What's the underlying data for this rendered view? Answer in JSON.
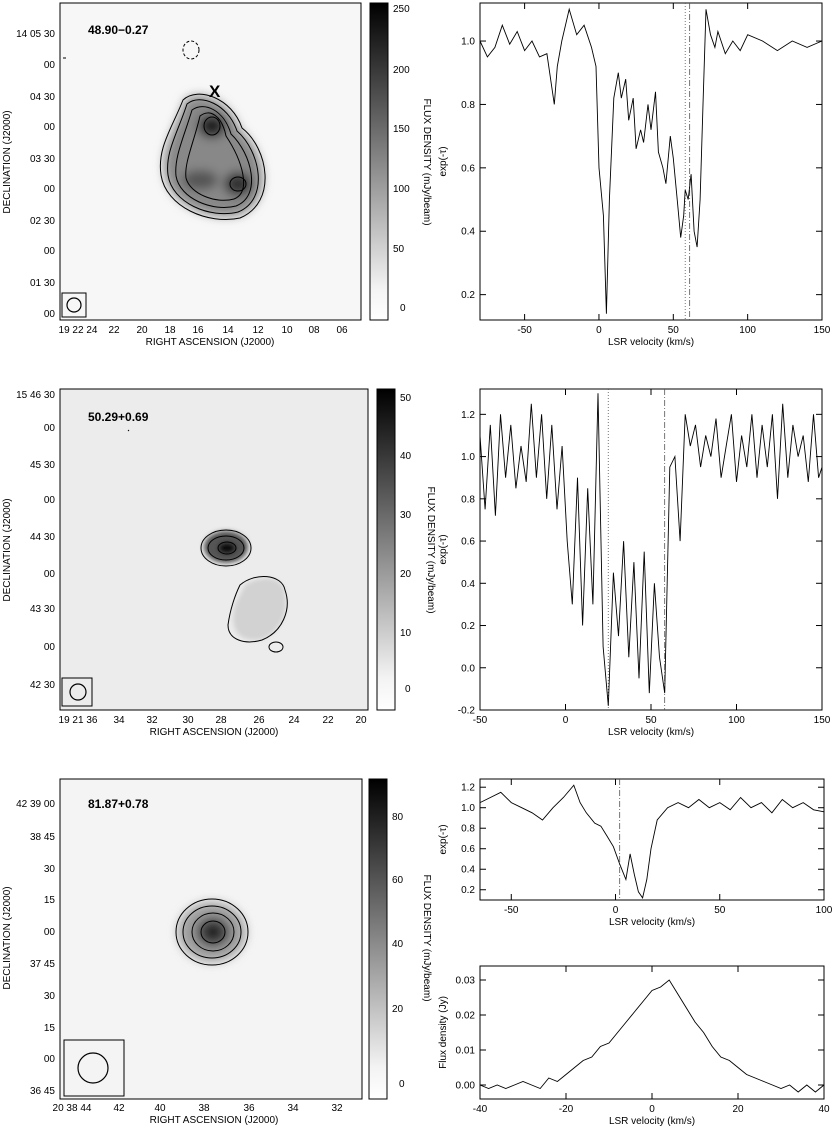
{
  "maps": [
    {
      "id": "map1",
      "source": "48.90−0.27",
      "marker": "X",
      "xlabel": "RIGHT ASCENSION (J2000)",
      "ylabel": "DECLINATION (J2000)",
      "colorbar_label": "FLUX DENSITY (mJy/beam)",
      "x_ticks": [
        "19 22 24",
        "22",
        "20",
        "18",
        "16",
        "14",
        "12",
        "10",
        "08",
        "06"
      ],
      "y_ticks": [
        "14 05 30",
        "00",
        "04 30",
        "00",
        "03 30",
        "00",
        "02 30",
        "00",
        "01 30",
        "00"
      ],
      "colorbar_ticks": [
        "250",
        "200",
        "150",
        "100",
        "50",
        "0"
      ]
    },
    {
      "id": "map2",
      "source": "50.29+0.69",
      "xlabel": "RIGHT ASCENSION (J2000)",
      "ylabel": "DECLINATION (J2000)",
      "colorbar_label": "FLUX DENSITY (mJy/beam)",
      "x_ticks": [
        "19 21 36",
        "34",
        "32",
        "30",
        "28",
        "26",
        "24",
        "22",
        "20"
      ],
      "y_ticks": [
        "15 46 30",
        "00",
        "45 30",
        "00",
        "44 30",
        "00",
        "43 30",
        "00",
        "42 30"
      ],
      "colorbar_ticks": [
        "50",
        "40",
        "30",
        "20",
        "10",
        "0"
      ]
    },
    {
      "id": "map3",
      "source": "81.87+0.78",
      "xlabel": "RIGHT ASCENSION (J2000)",
      "ylabel": "DECLINATION (J2000)",
      "colorbar_label": "FLUX DENSITY (mJy/beam)",
      "x_ticks": [
        "20 38 44",
        "42",
        "40",
        "38",
        "36",
        "34",
        "32"
      ],
      "y_ticks": [
        "42 39 00",
        "38 45",
        "30",
        "15",
        "00",
        "37 45",
        "30",
        "15",
        "00",
        "36 45"
      ],
      "colorbar_ticks": [
        "80",
        "60",
        "40",
        "20",
        "0"
      ]
    }
  ],
  "chart_data": [
    {
      "type": "line",
      "id": "spec1",
      "xlabel": "LSR velocity (km/s)",
      "ylabel": "exp(-τ)",
      "xlim": [
        -80,
        150
      ],
      "ylim": [
        0.12,
        1.12
      ],
      "x_ticks": [
        -50,
        0,
        50,
        100,
        150
      ],
      "y_ticks": [
        0.2,
        0.4,
        0.6,
        0.8,
        1.0
      ],
      "y_tick_labels": [
        "0.2",
        "0.4",
        "0.6",
        "0.8",
        "1.0"
      ],
      "vlines": [
        {
          "x": 58,
          "style": "dotted"
        },
        {
          "x": 61,
          "style": "dashdot"
        }
      ],
      "x": [
        -80,
        -75,
        -70,
        -65,
        -60,
        -55,
        -50,
        -45,
        -40,
        -35,
        -30,
        -28,
        -25,
        -20,
        -15,
        -10,
        -5,
        -2,
        0,
        3,
        5,
        7,
        10,
        13,
        15,
        18,
        20,
        23,
        25,
        28,
        30,
        33,
        35,
        38,
        40,
        43,
        45,
        48,
        50,
        53,
        55,
        57,
        58,
        60,
        62,
        64,
        66,
        68,
        70,
        72,
        75,
        78,
        80,
        85,
        90,
        95,
        100,
        110,
        120,
        130,
        140,
        150
      ],
      "y": [
        1.0,
        0.95,
        0.98,
        1.05,
        0.99,
        1.03,
        0.97,
        1.0,
        0.95,
        0.96,
        0.8,
        0.92,
        1.0,
        1.1,
        1.02,
        1.05,
        0.98,
        0.92,
        0.6,
        0.45,
        0.14,
        0.5,
        0.82,
        0.9,
        0.82,
        0.88,
        0.75,
        0.82,
        0.66,
        0.72,
        0.68,
        0.8,
        0.72,
        0.84,
        0.65,
        0.6,
        0.55,
        0.7,
        0.63,
        0.48,
        0.38,
        0.45,
        0.53,
        0.5,
        0.58,
        0.4,
        0.35,
        0.5,
        0.8,
        1.1,
        1.02,
        0.98,
        1.03,
        0.96,
        1.0,
        0.97,
        1.02,
        1.0,
        0.97,
        1.0,
        0.98,
        1.0
      ]
    },
    {
      "type": "line",
      "id": "spec2",
      "xlabel": "LSR velocity (km/s)",
      "ylabel": "exp(-τ)",
      "xlim": [
        -50,
        150
      ],
      "ylim": [
        -0.2,
        1.32
      ],
      "x_ticks": [
        -50,
        0,
        50,
        100,
        150
      ],
      "y_ticks": [
        -0.2,
        0.0,
        0.2,
        0.4,
        0.6,
        0.8,
        1.0,
        1.2
      ],
      "y_tick_labels": [
        "-0.2",
        "0.0",
        "0.2",
        "0.4",
        "0.6",
        "0.8",
        "1.0",
        "1.2"
      ],
      "vlines": [
        {
          "x": 25,
          "style": "dotted"
        },
        {
          "x": 58,
          "style": "dashdot"
        }
      ],
      "x": [
        -50,
        -47,
        -44,
        -41,
        -38,
        -35,
        -32,
        -29,
        -26,
        -23,
        -20,
        -17,
        -14,
        -11,
        -8,
        -5,
        -2,
        1,
        4,
        7,
        10,
        13,
        16,
        19,
        22,
        25,
        28,
        31,
        34,
        37,
        40,
        43,
        46,
        49,
        52,
        55,
        58,
        61,
        64,
        67,
        70,
        73,
        76,
        79,
        82,
        85,
        88,
        91,
        94,
        97,
        100,
        103,
        106,
        109,
        112,
        115,
        118,
        121,
        124,
        127,
        130,
        133,
        136,
        139,
        142,
        145,
        148,
        150
      ],
      "y": [
        1.1,
        0.75,
        1.15,
        0.72,
        1.2,
        0.9,
        1.15,
        0.85,
        1.05,
        0.88,
        1.25,
        0.9,
        1.2,
        0.8,
        1.15,
        0.75,
        1.05,
        0.6,
        0.3,
        0.9,
        0.2,
        0.85,
        0.3,
        1.3,
        0.1,
        -0.18,
        0.45,
        0.15,
        0.6,
        0.05,
        0.5,
        -0.05,
        0.55,
        -0.12,
        0.4,
        0.05,
        -0.12,
        0.95,
        1.0,
        0.6,
        1.2,
        1.05,
        1.15,
        0.95,
        1.1,
        1.0,
        1.18,
        0.9,
        1.05,
        1.2,
        0.88,
        1.1,
        0.95,
        1.2,
        0.9,
        1.15,
        0.95,
        1.2,
        0.8,
        1.25,
        0.9,
        1.15,
        1.0,
        1.1,
        0.88,
        1.2,
        0.9,
        0.95
      ]
    },
    {
      "type": "line",
      "id": "spec3",
      "xlabel": "LSR velocity (km/s)",
      "ylabel": "exp(-τ)",
      "xlim": [
        -65,
        100
      ],
      "ylim": [
        0.1,
        1.28
      ],
      "x_ticks": [
        -50,
        0,
        50,
        100
      ],
      "y_ticks": [
        0.2,
        0.4,
        0.6,
        0.8,
        1.0,
        1.2
      ],
      "y_tick_labels": [
        "0.2",
        "0.4",
        "0.6",
        "0.8",
        "1.0",
        "1.2"
      ],
      "vlines": [
        {
          "x": 2,
          "style": "dashdot"
        }
      ],
      "x": [
        -65,
        -60,
        -55,
        -50,
        -45,
        -40,
        -35,
        -30,
        -25,
        -20,
        -17,
        -14,
        -10,
        -7,
        -4,
        -1,
        2,
        5,
        7,
        9,
        11,
        13,
        15,
        17,
        20,
        25,
        30,
        35,
        40,
        45,
        50,
        55,
        60,
        65,
        70,
        75,
        80,
        85,
        90,
        95,
        100
      ],
      "y": [
        1.05,
        1.1,
        1.15,
        1.05,
        1.0,
        0.95,
        0.88,
        1.0,
        1.1,
        1.22,
        1.05,
        0.95,
        0.85,
        0.82,
        0.72,
        0.62,
        0.45,
        0.3,
        0.55,
        0.35,
        0.18,
        0.12,
        0.3,
        0.6,
        0.88,
        1.0,
        1.05,
        1.0,
        1.08,
        1.0,
        1.05,
        0.98,
        1.1,
        1.0,
        1.05,
        0.95,
        1.08,
        1.0,
        1.05,
        0.98,
        0.96
      ]
    },
    {
      "type": "line",
      "id": "spec4",
      "xlabel": "LSR velocity (km/s)",
      "ylabel": "Flux density (Jy)",
      "xlim": [
        -40,
        40
      ],
      "ylim": [
        -0.004,
        0.034
      ],
      "x_ticks": [
        -40,
        -20,
        0,
        20,
        40
      ],
      "y_ticks": [
        0.0,
        0.01,
        0.02,
        0.03
      ],
      "y_tick_labels": [
        "0.00",
        "0.01",
        "0.02",
        "0.03"
      ],
      "vlines": [],
      "x": [
        -40,
        -38,
        -36,
        -34,
        -32,
        -30,
        -28,
        -26,
        -24,
        -22,
        -20,
        -18,
        -16,
        -14,
        -12,
        -10,
        -8,
        -6,
        -4,
        -2,
        0,
        2,
        4,
        6,
        8,
        10,
        12,
        14,
        16,
        18,
        20,
        22,
        24,
        26,
        28,
        30,
        32,
        34,
        36,
        38,
        40
      ],
      "y": [
        0.0,
        -0.001,
        0.0,
        -0.001,
        0.0,
        0.001,
        0.0,
        -0.001,
        0.002,
        0.001,
        0.003,
        0.005,
        0.007,
        0.008,
        0.011,
        0.012,
        0.015,
        0.018,
        0.021,
        0.024,
        0.027,
        0.028,
        0.03,
        0.026,
        0.022,
        0.018,
        0.015,
        0.011,
        0.008,
        0.007,
        0.005,
        0.003,
        0.002,
        0.001,
        0.0,
        -0.001,
        0.0,
        -0.002,
        0.0,
        -0.002,
        0.0
      ]
    }
  ]
}
